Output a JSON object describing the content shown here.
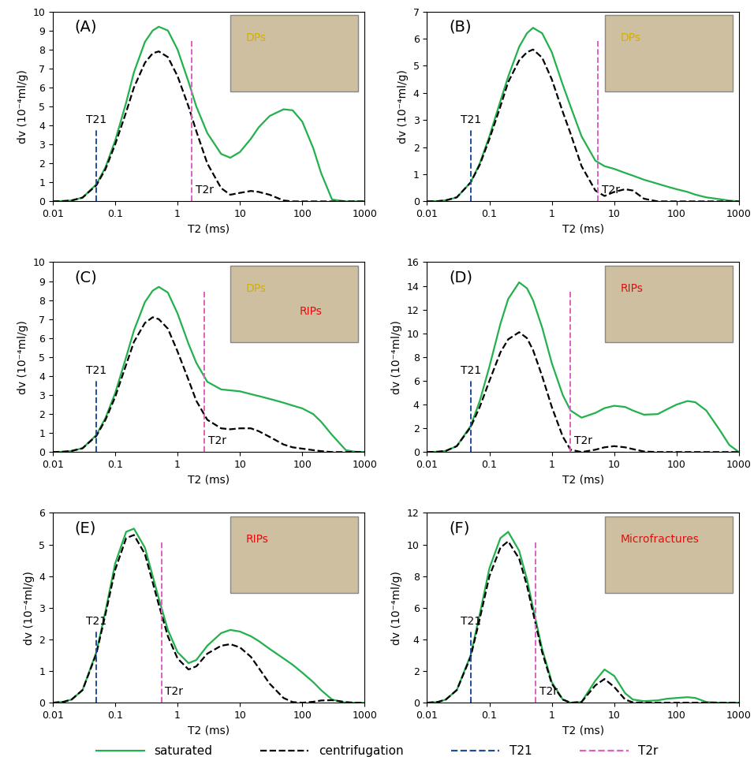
{
  "legend": "lower center",
  "chart_data": [
    {
      "type": "line",
      "title": "(A)",
      "log": "x",
      "x_label": "T2 (ms)",
      "y_label": "dv (10⁻⁴ml/g)",
      "x": [
        0.01,
        0.015,
        0.02,
        0.03,
        0.05,
        0.07,
        0.1,
        0.15,
        0.2,
        0.3,
        0.4,
        0.5,
        0.7,
        1,
        1.5,
        2,
        3,
        5,
        7,
        10,
        15,
        20,
        30,
        50,
        70,
        100,
        150,
        200,
        300,
        500,
        700,
        1000
      ],
      "xlim": [
        0.01,
        1000
      ],
      "xticks": [
        0.01,
        0.1,
        1,
        10,
        100,
        1000
      ],
      "ylim": [
        0,
        10
      ],
      "yticks": [
        0,
        1,
        2,
        3,
        4,
        5,
        6,
        7,
        8,
        9,
        10
      ],
      "series": [
        {
          "name": "saturated",
          "color": "#22b14c",
          "line_style": "solid",
          "values": [
            0,
            0.02,
            0.05,
            0.2,
            0.9,
            1.8,
            3.2,
            5.2,
            6.8,
            8.4,
            9.0,
            9.2,
            9.0,
            8.0,
            6.3,
            5.0,
            3.6,
            2.5,
            2.3,
            2.6,
            3.3,
            3.9,
            4.5,
            4.85,
            4.8,
            4.2,
            2.8,
            1.5,
            0.1,
            0,
            0,
            0
          ]
        },
        {
          "name": "centrifugation",
          "color": "#000000",
          "line_style": "dashed",
          "values": [
            0,
            0.02,
            0.05,
            0.2,
            0.85,
            1.7,
            3.0,
            4.7,
            6.0,
            7.3,
            7.8,
            7.9,
            7.6,
            6.6,
            5.0,
            3.7,
            2.0,
            0.7,
            0.35,
            0.45,
            0.55,
            0.5,
            0.35,
            0.05,
            0,
            0,
            0,
            0,
            0,
            0,
            0,
            0
          ]
        }
      ],
      "vlines": [
        {
          "name": "T21",
          "value": 0.05,
          "color": "#1f4e9a",
          "line_style": "dashed"
        },
        {
          "name": "T2r",
          "value": 1.7,
          "color": "#e060c0",
          "line_style": "dashed"
        }
      ],
      "annotations": [
        "DPs"
      ]
    },
    {
      "type": "line",
      "title": "(B)",
      "log": "x",
      "x_label": "T2 (ms)",
      "y_label": "dv (10⁻⁴ml/g)",
      "x": [
        0.01,
        0.015,
        0.02,
        0.03,
        0.05,
        0.07,
        0.1,
        0.15,
        0.2,
        0.3,
        0.4,
        0.5,
        0.7,
        1,
        1.5,
        2,
        3,
        5,
        7,
        10,
        15,
        20,
        30,
        50,
        70,
        100,
        150,
        200,
        300,
        500,
        700,
        1000
      ],
      "xlim": [
        0.01,
        1000
      ],
      "xticks": [
        0.01,
        0.1,
        1,
        10,
        100,
        1000
      ],
      "ylim": [
        0,
        7
      ],
      "yticks": [
        0,
        1,
        2,
        3,
        4,
        5,
        6,
        7
      ],
      "series": [
        {
          "name": "saturated",
          "color": "#22b14c",
          "line_style": "solid",
          "values": [
            0,
            0.01,
            0.04,
            0.15,
            0.7,
            1.4,
            2.4,
            3.7,
            4.6,
            5.7,
            6.2,
            6.4,
            6.2,
            5.5,
            4.3,
            3.5,
            2.4,
            1.5,
            1.3,
            1.2,
            1.05,
            0.95,
            0.8,
            0.65,
            0.55,
            0.45,
            0.35,
            0.25,
            0.15,
            0.08,
            0.03,
            0
          ]
        },
        {
          "name": "centrifugation",
          "color": "#000000",
          "line_style": "dashed",
          "values": [
            0,
            0.01,
            0.04,
            0.15,
            0.7,
            1.35,
            2.3,
            3.5,
            4.4,
            5.2,
            5.5,
            5.6,
            5.3,
            4.5,
            3.3,
            2.5,
            1.3,
            0.4,
            0.2,
            0.35,
            0.45,
            0.4,
            0.1,
            0,
            0,
            0,
            0,
            0,
            0,
            0,
            0,
            0
          ]
        }
      ],
      "vlines": [
        {
          "name": "T21",
          "value": 0.05,
          "color": "#1f4e9a",
          "line_style": "dashed"
        },
        {
          "name": "T2r",
          "value": 5.5,
          "color": "#e060c0",
          "line_style": "dashed"
        }
      ],
      "annotations": [
        "DPs"
      ]
    },
    {
      "type": "line",
      "title": "(C)",
      "log": "x",
      "x_label": "T2 (ms)",
      "y_label": "dv (10⁻⁴ml/g)",
      "x": [
        0.01,
        0.015,
        0.02,
        0.03,
        0.05,
        0.07,
        0.1,
        0.15,
        0.2,
        0.3,
        0.4,
        0.5,
        0.7,
        1,
        1.5,
        2,
        3,
        5,
        7,
        10,
        15,
        20,
        30,
        50,
        70,
        100,
        150,
        200,
        300,
        500,
        700,
        1000
      ],
      "xlim": [
        0.01,
        1000
      ],
      "xticks": [
        0.01,
        0.1,
        1,
        10,
        100,
        1000
      ],
      "ylim": [
        0,
        10
      ],
      "yticks": [
        0,
        1,
        2,
        3,
        4,
        5,
        6,
        7,
        8,
        9,
        10
      ],
      "series": [
        {
          "name": "saturated",
          "color": "#22b14c",
          "line_style": "solid",
          "values": [
            0,
            0.02,
            0.06,
            0.2,
            0.9,
            1.8,
            3.1,
            5.0,
            6.4,
            7.9,
            8.5,
            8.7,
            8.4,
            7.3,
            5.7,
            4.7,
            3.7,
            3.3,
            3.25,
            3.2,
            3.05,
            2.95,
            2.8,
            2.6,
            2.45,
            2.3,
            2.0,
            1.6,
            0.9,
            0.1,
            0.02,
            0
          ]
        },
        {
          "name": "centrifugation",
          "color": "#000000",
          "line_style": "dashed",
          "values": [
            0,
            0.02,
            0.06,
            0.2,
            0.85,
            1.7,
            2.9,
            4.6,
            5.8,
            6.8,
            7.1,
            7.0,
            6.5,
            5.3,
            3.8,
            2.7,
            1.7,
            1.25,
            1.2,
            1.25,
            1.25,
            1.1,
            0.8,
            0.4,
            0.25,
            0.18,
            0.1,
            0.05,
            0,
            0,
            0,
            0
          ]
        }
      ],
      "vlines": [
        {
          "name": "T21",
          "value": 0.05,
          "color": "#1f4e9a",
          "line_style": "dashed"
        },
        {
          "name": "T2r",
          "value": 2.7,
          "color": "#e060c0",
          "line_style": "dashed"
        }
      ],
      "annotations": [
        "DPs",
        "RIPs"
      ]
    },
    {
      "type": "line",
      "title": "(D)",
      "log": "x",
      "x_label": "T2 (ms)",
      "y_label": "dv (10⁻⁴ml/g)",
      "x": [
        0.01,
        0.015,
        0.02,
        0.03,
        0.05,
        0.07,
        0.1,
        0.15,
        0.2,
        0.3,
        0.4,
        0.5,
        0.7,
        1,
        1.5,
        2,
        3,
        5,
        7,
        10,
        15,
        20,
        30,
        50,
        70,
        100,
        150,
        200,
        300,
        500,
        700,
        1000
      ],
      "xlim": [
        0.01,
        1000
      ],
      "xticks": [
        0.01,
        0.1,
        1,
        10,
        100,
        1000
      ],
      "ylim": [
        0,
        16
      ],
      "yticks": [
        0,
        2,
        4,
        6,
        8,
        10,
        12,
        14,
        16
      ],
      "series": [
        {
          "name": "saturated",
          "color": "#22b14c",
          "line_style": "solid",
          "values": [
            0,
            0.03,
            0.1,
            0.5,
            2.2,
            4.3,
            7.2,
            10.8,
            12.9,
            14.3,
            13.8,
            12.8,
            10.5,
            7.5,
            4.8,
            3.5,
            2.9,
            3.3,
            3.7,
            3.9,
            3.8,
            3.5,
            3.15,
            3.2,
            3.6,
            4.0,
            4.3,
            4.2,
            3.5,
            1.8,
            0.6,
            0
          ]
        },
        {
          "name": "centrifugation",
          "color": "#000000",
          "line_style": "dashed",
          "values": [
            0,
            0.03,
            0.1,
            0.5,
            2.1,
            3.8,
            6.0,
            8.4,
            9.5,
            10.1,
            9.6,
            8.6,
            6.4,
            3.8,
            1.3,
            0.2,
            0,
            0.2,
            0.4,
            0.5,
            0.4,
            0.25,
            0.05,
            0,
            0,
            0,
            0,
            0,
            0,
            0,
            0,
            0
          ]
        }
      ],
      "vlines": [
        {
          "name": "T21",
          "value": 0.05,
          "color": "#1f4e9a",
          "line_style": "dashed"
        },
        {
          "name": "T2r",
          "value": 2.0,
          "color": "#e060c0",
          "line_style": "dashed"
        }
      ],
      "annotations": [
        "RIPs"
      ]
    },
    {
      "type": "line",
      "title": "(E)",
      "log": "x",
      "x_label": "T2 (ms)",
      "y_label": "dv (10⁻⁴ml/g)",
      "x": [
        0.01,
        0.015,
        0.02,
        0.03,
        0.05,
        0.07,
        0.1,
        0.15,
        0.2,
        0.3,
        0.4,
        0.5,
        0.7,
        1,
        1.5,
        2,
        3,
        5,
        7,
        10,
        15,
        20,
        30,
        50,
        70,
        100,
        150,
        200,
        300,
        500,
        700,
        1000
      ],
      "xlim": [
        0.01,
        1000
      ],
      "xticks": [
        0.01,
        0.1,
        1,
        10,
        100,
        1000
      ],
      "ylim": [
        0,
        6
      ],
      "yticks": [
        0,
        1,
        2,
        3,
        4,
        5,
        6
      ],
      "series": [
        {
          "name": "saturated",
          "color": "#22b14c",
          "line_style": "solid",
          "values": [
            0,
            0.03,
            0.1,
            0.4,
            1.6,
            2.9,
            4.4,
            5.4,
            5.5,
            4.9,
            4.0,
            3.3,
            2.3,
            1.6,
            1.25,
            1.35,
            1.8,
            2.2,
            2.3,
            2.25,
            2.1,
            1.95,
            1.7,
            1.4,
            1.2,
            0.95,
            0.65,
            0.4,
            0.1,
            0,
            0,
            0
          ]
        },
        {
          "name": "centrifugation",
          "color": "#000000",
          "line_style": "dashed",
          "values": [
            0,
            0.03,
            0.1,
            0.4,
            1.55,
            2.8,
            4.2,
            5.2,
            5.3,
            4.7,
            3.8,
            3.1,
            2.1,
            1.4,
            1.05,
            1.15,
            1.55,
            1.8,
            1.85,
            1.75,
            1.45,
            1.1,
            0.6,
            0.15,
            0.02,
            0,
            0.03,
            0.07,
            0.08,
            0.02,
            0,
            0
          ]
        }
      ],
      "vlines": [
        {
          "name": "T21",
          "value": 0.05,
          "color": "#1f4e9a",
          "line_style": "dashed"
        },
        {
          "name": "T2r",
          "value": 0.55,
          "color": "#e060c0",
          "line_style": "dashed"
        }
      ],
      "annotations": [
        "RIPs"
      ]
    },
    {
      "type": "line",
      "title": "(F)",
      "log": "x",
      "x_label": "T2 (ms)",
      "y_label": "dv (10⁻⁴ml/g)",
      "x": [
        0.01,
        0.015,
        0.02,
        0.03,
        0.05,
        0.07,
        0.1,
        0.15,
        0.2,
        0.3,
        0.4,
        0.5,
        0.7,
        1,
        1.5,
        2,
        3,
        5,
        7,
        10,
        15,
        20,
        30,
        50,
        70,
        100,
        150,
        200,
        300,
        500,
        700,
        1000
      ],
      "xlim": [
        0.01,
        1000
      ],
      "xticks": [
        0.01,
        0.1,
        1,
        10,
        100,
        1000
      ],
      "ylim": [
        0,
        12
      ],
      "yticks": [
        0,
        2,
        4,
        6,
        8,
        10,
        12
      ],
      "series": [
        {
          "name": "saturated",
          "color": "#22b14c",
          "line_style": "solid",
          "values": [
            0,
            0.05,
            0.2,
            0.8,
            3.0,
            5.6,
            8.5,
            10.4,
            10.8,
            9.6,
            7.8,
            6.0,
            3.4,
            1.3,
            0.2,
            0,
            0.05,
            1.4,
            2.1,
            1.7,
            0.6,
            0.2,
            0.1,
            0.15,
            0.25,
            0.3,
            0.35,
            0.3,
            0.05,
            0,
            0,
            0
          ]
        },
        {
          "name": "centrifugation",
          "color": "#000000",
          "line_style": "dashed",
          "values": [
            0,
            0.05,
            0.2,
            0.8,
            2.9,
            5.3,
            8.0,
            9.8,
            10.2,
            9.1,
            7.4,
            5.7,
            3.2,
            1.2,
            0.2,
            0,
            0.05,
            1.1,
            1.5,
            1.0,
            0.2,
            0.02,
            0,
            0,
            0,
            0,
            0,
            0,
            0,
            0,
            0,
            0
          ]
        }
      ],
      "vlines": [
        {
          "name": "T21",
          "value": 0.05,
          "color": "#1f4e9a",
          "line_style": "dashed"
        },
        {
          "name": "T2r",
          "value": 0.55,
          "color": "#e060c0",
          "line_style": "dashed"
        }
      ],
      "annotations": [
        "Microfractures"
      ]
    }
  ]
}
